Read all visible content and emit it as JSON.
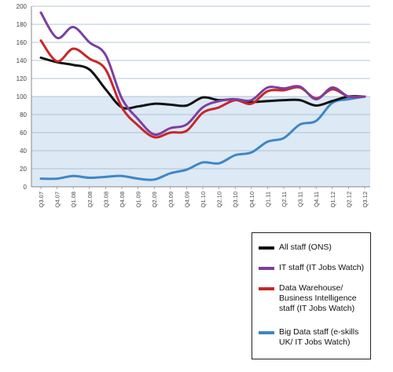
{
  "chart_data": {
    "type": "line",
    "categories": [
      "Q3.07",
      "Q4.07",
      "Q1.08",
      "Q2.08",
      "Q3.08",
      "Q4.08",
      "Q1.09",
      "Q2.09",
      "Q3.09",
      "Q4.09",
      "Q1.10",
      "Q2.10",
      "Q3.10",
      "Q4.10",
      "Q1.11",
      "Q2.11",
      "Q3.11",
      "Q4.11",
      "Q1.12",
      "Q2.12",
      "Q3.12"
    ],
    "ylim": [
      0,
      200
    ],
    "yticks": [
      0,
      20,
      40,
      60,
      80,
      100,
      120,
      140,
      160,
      180,
      200
    ],
    "shaded_band": [
      0,
      100
    ],
    "legend_position": "bottom-right",
    "series": [
      {
        "name": "All staff (ONS)",
        "color": "#111111",
        "values": [
          143,
          138,
          135,
          130,
          108,
          88,
          89,
          92,
          91,
          90,
          99,
          96,
          97,
          94,
          95,
          96,
          96,
          90,
          95,
          100,
          100
        ]
      },
      {
        "name": "IT staff (IT Jobs Watch)",
        "color": "#7b3fa0",
        "values": [
          193,
          165,
          177,
          160,
          146,
          98,
          75,
          58,
          65,
          69,
          88,
          95,
          97,
          96,
          110,
          109,
          111,
          97,
          110,
          100,
          100
        ]
      },
      {
        "name": "Data Warehouse/\nBusiness Intelligence\nstaff (IT Jobs Watch)",
        "color": "#c8262a",
        "values": [
          162,
          139,
          153,
          142,
          130,
          88,
          68,
          55,
          60,
          62,
          82,
          88,
          96,
          92,
          106,
          107,
          110,
          98,
          108,
          100,
          100
        ]
      },
      {
        "name": "Big Data staff (e-skills\nUK/ IT Jobs Watch)",
        "color": "#3d87c7",
        "values": [
          9,
          9,
          12,
          10,
          11,
          12,
          9,
          8,
          15,
          19,
          27,
          26,
          35,
          38,
          50,
          54,
          69,
          73,
          93,
          97,
          100
        ]
      }
    ]
  }
}
